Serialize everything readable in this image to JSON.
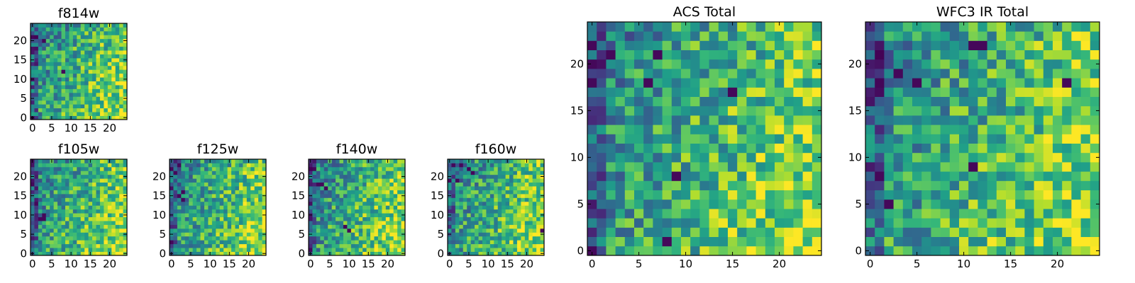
{
  "chart_data": [
    {
      "type": "heatmap",
      "id": "f814w",
      "title": "f814w",
      "grid_size": 25,
      "colormap": "viridis",
      "xticks": [
        "0",
        "5",
        "10",
        "15",
        "20"
      ],
      "yticks": [
        "0",
        "5",
        "10",
        "15",
        "20"
      ],
      "tick_values": [
        0,
        5,
        10,
        15,
        20
      ],
      "seed": 814,
      "dark_cells": [
        [
          0,
          0
        ],
        [
          20,
          3
        ],
        [
          12,
          8
        ]
      ]
    },
    {
      "type": "heatmap",
      "id": "f105w",
      "title": "f105w",
      "grid_size": 25,
      "colormap": "viridis",
      "xticks": [
        "0",
        "5",
        "10",
        "15",
        "20"
      ],
      "yticks": [
        "0",
        "5",
        "10",
        "15",
        "20"
      ],
      "tick_values": [
        0,
        5,
        10,
        15,
        20
      ],
      "seed": 105,
      "dark_cells": [
        [
          9,
          2
        ],
        [
          9,
          3
        ],
        [
          13,
          1
        ],
        [
          18,
          0
        ],
        [
          10,
          3
        ]
      ]
    },
    {
      "type": "heatmap",
      "id": "f125w",
      "title": "f125w",
      "grid_size": 25,
      "colormap": "viridis",
      "xticks": [
        "0",
        "5",
        "10",
        "15",
        "20"
      ],
      "yticks": [
        "0",
        "5",
        "10",
        "15",
        "20"
      ],
      "tick_values": [
        0,
        5,
        10,
        15,
        20
      ],
      "seed": 125,
      "dark_cells": [
        [
          15,
          2
        ],
        [
          16,
          3
        ],
        [
          14,
          3
        ],
        [
          3,
          0
        ],
        [
          23,
          2
        ]
      ]
    },
    {
      "type": "heatmap",
      "id": "f140w",
      "title": "f140w",
      "grid_size": 25,
      "colormap": "viridis",
      "xticks": [
        "0",
        "5",
        "10",
        "15",
        "20"
      ],
      "yticks": [
        "0",
        "5",
        "10",
        "15",
        "20"
      ],
      "tick_values": [
        0,
        5,
        10,
        15,
        20
      ],
      "seed": 140,
      "dark_cells": [
        [
          18,
          2
        ],
        [
          18,
          3
        ],
        [
          17,
          4
        ],
        [
          7,
          9
        ],
        [
          6,
          10
        ],
        [
          1,
          0
        ],
        [
          22,
          1
        ]
      ]
    },
    {
      "type": "heatmap",
      "id": "f160w",
      "title": "f160w",
      "grid_size": 25,
      "colormap": "viridis",
      "xticks": [
        "0",
        "5",
        "10",
        "15",
        "20"
      ],
      "yticks": [
        "0",
        "5",
        "10",
        "15",
        "20"
      ],
      "tick_values": [
        0,
        5,
        10,
        15,
        20
      ],
      "seed": 160,
      "dark_cells": [
        [
          23,
          1
        ],
        [
          23,
          3
        ],
        [
          22,
          5
        ],
        [
          21,
          6
        ],
        [
          19,
          2
        ],
        [
          6,
          24
        ]
      ]
    },
    {
      "type": "heatmap",
      "id": "acs-total",
      "title": "ACS Total",
      "grid_size": 25,
      "colormap": "viridis",
      "xticks": [
        "0",
        "5",
        "10",
        "15",
        "20"
      ],
      "yticks": [
        "0",
        "5",
        "10",
        "15",
        "20"
      ],
      "tick_values": [
        0,
        5,
        10,
        15,
        20
      ],
      "seed": 2017,
      "dark_cells": [
        [
          0,
          0
        ],
        [
          22,
          0
        ],
        [
          21,
          2
        ],
        [
          20,
          0
        ],
        [
          21,
          7
        ],
        [
          18,
          6
        ],
        [
          8,
          9
        ],
        [
          17,
          15
        ],
        [
          1,
          8
        ]
      ]
    },
    {
      "type": "heatmap",
      "id": "wfc3-ir-total",
      "title": "WFC3 IR Total",
      "grid_size": 25,
      "colormap": "viridis",
      "xticks": [
        "0",
        "5",
        "10",
        "15",
        "20"
      ],
      "yticks": [
        "0",
        "5",
        "10",
        "15",
        "20"
      ],
      "tick_values": [
        0,
        5,
        10,
        15,
        20
      ],
      "seed": 3141,
      "dark_cells": [
        [
          19,
          3
        ],
        [
          18,
          5
        ],
        [
          8,
          1
        ],
        [
          9,
          11
        ],
        [
          5,
          2
        ],
        [
          18,
          21
        ],
        [
          22,
          11
        ],
        [
          22,
          12
        ]
      ]
    }
  ]
}
